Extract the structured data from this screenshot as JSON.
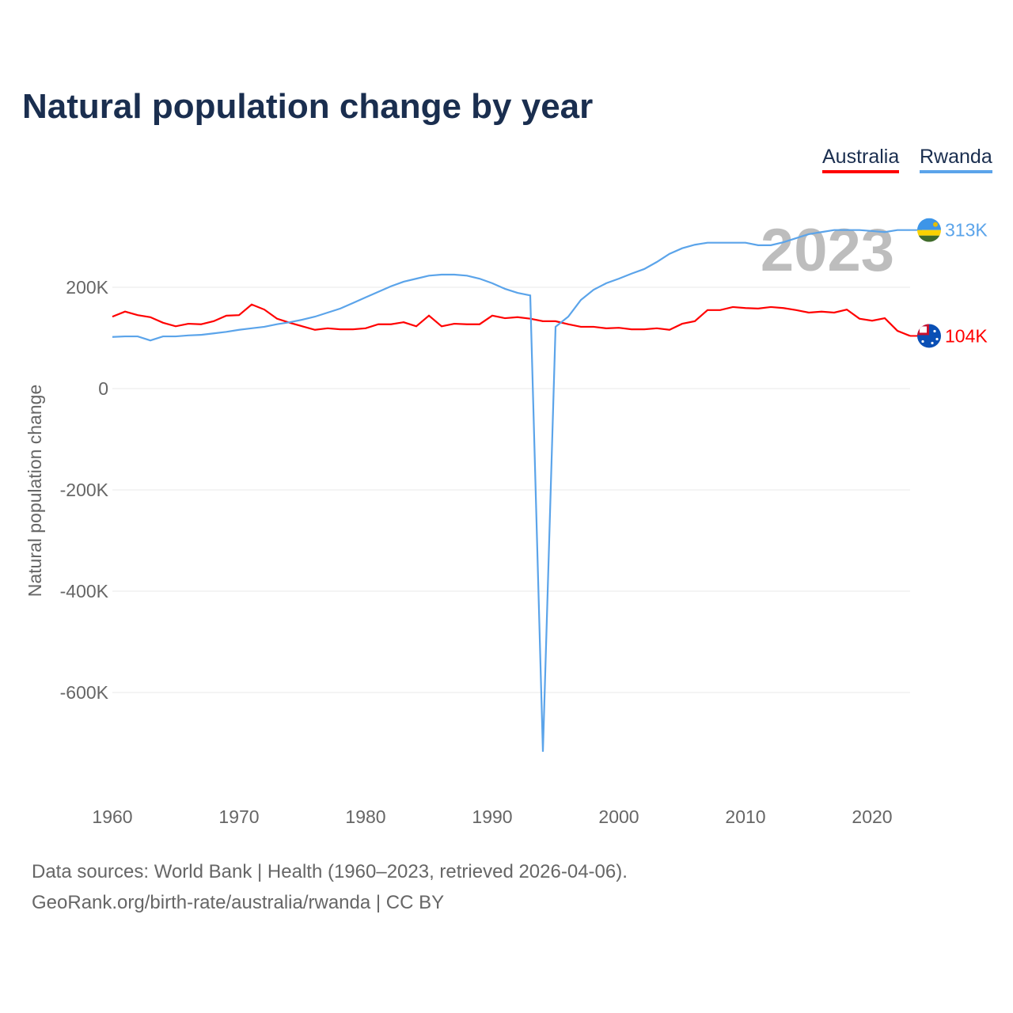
{
  "chart_data": {
    "type": "line",
    "title": "Natural population change by year",
    "ylabel": "Natural population change",
    "xlabel": "",
    "ylim": [
      -780000,
      330000
    ],
    "xlim": [
      1960,
      2023
    ],
    "x_ticks": [
      "1960",
      "1970",
      "1980",
      "1990",
      "2000",
      "2010",
      "2020"
    ],
    "y_ticks": [
      {
        "v": 200000,
        "label": "200K"
      },
      {
        "v": 0,
        "label": "0"
      },
      {
        "v": -200000,
        "label": "-200K"
      },
      {
        "v": -400000,
        "label": "-400K"
      },
      {
        "v": -600000,
        "label": "-600K"
      }
    ],
    "year_label": "2023",
    "legend_placement": "top-right",
    "series": [
      {
        "name": "Australia",
        "color": "#ff0000",
        "end_label": "104K",
        "values": [
          142,
          152,
          145,
          141,
          130,
          123,
          128,
          127,
          133,
          144,
          145,
          166,
          156,
          138,
          130,
          123,
          116,
          119,
          117,
          117,
          119,
          127,
          127,
          131,
          123,
          144,
          123,
          128,
          127,
          127,
          144,
          139,
          141,
          138,
          133,
          133,
          127,
          122,
          122,
          119,
          120,
          117,
          117,
          119,
          116,
          128,
          133,
          155,
          155,
          161,
          159,
          158,
          161,
          159,
          155,
          150,
          152,
          150,
          156,
          138,
          134,
          139,
          114,
          104
        ]
      },
      {
        "name": "Rwanda",
        "color": "#5ba4ea",
        "end_label": "313K",
        "values": [
          102,
          103,
          103,
          95,
          103,
          103,
          105,
          106,
          109,
          112,
          116,
          119,
          122,
          127,
          131,
          136,
          142,
          150,
          158,
          169,
          180,
          191,
          202,
          211,
          217,
          223,
          225,
          225,
          223,
          217,
          208,
          197,
          189,
          184,
          -717,
          122,
          142,
          175,
          195,
          208,
          217,
          227,
          236,
          250,
          266,
          277,
          284,
          288,
          288,
          288,
          288,
          283,
          283,
          289,
          297,
          305,
          309,
          313,
          313,
          313,
          311,
          309,
          313,
          313
        ]
      }
    ]
  },
  "footer": {
    "line1": "Data sources: World Bank | Health (1960–2023, retrieved 2026-04-06).",
    "line2": "GeoRank.org/birth-rate/australia/rwanda | CC BY"
  }
}
